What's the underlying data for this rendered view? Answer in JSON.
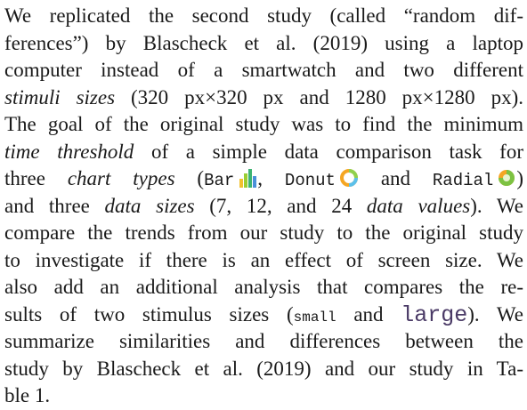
{
  "paragraph": {
    "lines": [
      [
        "We replicated the second study (called “random dif-"
      ],
      [
        "ferences”) by Blascheck et al. (2019) using a laptop"
      ],
      [
        "computer instead of a smartwatch and two different"
      ],
      [
        "stimuli sizes",
        " (320 px×320 px and 1280 px×1280 px)."
      ],
      [
        "The goal of the original study was to find the minimum"
      ],
      [
        "time threshold",
        " of a simple data comparison task for"
      ],
      [
        "three ",
        "chart types",
        " (",
        "Bar",
        ", ",
        "Donut",
        " and ",
        "Radial",
        ")"
      ],
      [
        "and three ",
        "data sizes",
        " (7, 12, and 24 ",
        "data values",
        "). We"
      ],
      [
        "compare the trends from our study to the original study"
      ],
      [
        "to investigate if there is an effect of screen size. We"
      ],
      [
        "also add an additional analysis that compares the re-"
      ],
      [
        "sults of two stimulus sizes (",
        "small",
        " and ",
        "large",
        "). We"
      ],
      [
        "summarize similarities and differences between the"
      ],
      [
        "study by Blascheck et al. (2019) and our study in Ta-"
      ],
      [
        "ble 1."
      ]
    ]
  }
}
